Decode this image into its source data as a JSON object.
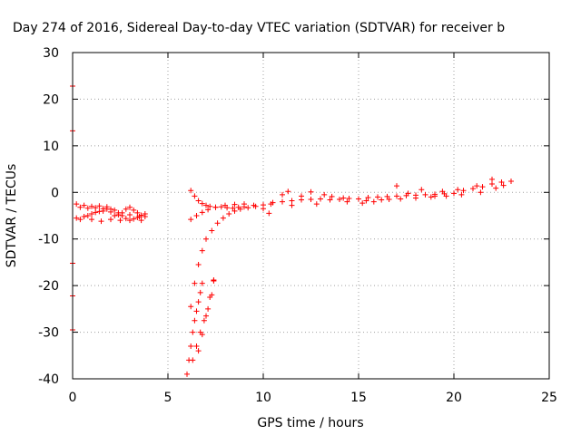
{
  "chart_data": {
    "type": "scatter",
    "title": "Day 274 of 2016, Sidereal Day-to-day VTEC variation (SDTVAR) for receiver b",
    "xlabel": "GPS time / hours",
    "ylabel": "SDTVAR / TECUs",
    "xlim": [
      0,
      25
    ],
    "ylim": [
      -40,
      30
    ],
    "xticks": [
      0,
      5,
      10,
      15,
      20,
      25
    ],
    "xtick_labels": [
      "0",
      "5",
      "10",
      "15",
      "20",
      "25"
    ],
    "yticks": [
      -40,
      -30,
      -20,
      -10,
      0,
      10,
      20,
      30
    ],
    "ytick_labels": [
      "-40",
      "-30",
      "-20",
      "-10",
      "0",
      "10",
      "20",
      "30"
    ],
    "grid": true,
    "marker": "+",
    "color": "#ff0000",
    "series": [
      {
        "points": [
          [
            0,
            22.8
          ],
          [
            0,
            13.2
          ],
          [
            0,
            -15.2
          ],
          [
            0,
            -22.2
          ],
          [
            0,
            -29.5
          ],
          [
            0.2,
            -2.5
          ],
          [
            0.4,
            -3.2
          ],
          [
            0.6,
            -2.8
          ],
          [
            0.8,
            -3.4
          ],
          [
            1.0,
            -3.0
          ],
          [
            1.2,
            -3.3
          ],
          [
            1.4,
            -2.9
          ],
          [
            1.6,
            -3.5
          ],
          [
            1.8,
            -3.1
          ],
          [
            2.0,
            -4.2
          ],
          [
            2.2,
            -5.0
          ],
          [
            2.4,
            -4.8
          ],
          [
            2.6,
            -4.4
          ],
          [
            2.8,
            -3.6
          ],
          [
            3.0,
            -3.2
          ],
          [
            3.2,
            -3.8
          ],
          [
            3.4,
            -4.4
          ],
          [
            3.6,
            -4.9
          ],
          [
            3.8,
            -4.6
          ],
          [
            0.2,
            -5.5
          ],
          [
            0.4,
            -5.8
          ],
          [
            0.6,
            -5.2
          ],
          [
            0.8,
            -5.0
          ],
          [
            1.0,
            -4.6
          ],
          [
            1.2,
            -4.3
          ],
          [
            1.4,
            -4.1
          ],
          [
            1.6,
            -4.0
          ],
          [
            1.8,
            -3.6
          ],
          [
            2.0,
            -3.6
          ],
          [
            2.2,
            -3.8
          ],
          [
            2.4,
            -4.4
          ],
          [
            2.6,
            -5.0
          ],
          [
            2.8,
            -5.6
          ],
          [
            3.0,
            -6.0
          ],
          [
            3.2,
            -5.7
          ],
          [
            3.4,
            -5.4
          ],
          [
            3.6,
            -6.0
          ],
          [
            3.8,
            -5.2
          ],
          [
            1.0,
            -5.8
          ],
          [
            1.5,
            -6.2
          ],
          [
            2.0,
            -5.8
          ],
          [
            2.5,
            -6.0
          ],
          [
            3.0,
            -4.8
          ],
          [
            3.5,
            -5.2
          ],
          [
            6.2,
            0.4
          ],
          [
            6.4,
            -0.8
          ],
          [
            6.6,
            -1.8
          ],
          [
            6.8,
            -2.4
          ],
          [
            7.0,
            -2.8
          ],
          [
            7.2,
            -3.0
          ],
          [
            7.5,
            -3.2
          ],
          [
            7.8,
            -3.1
          ],
          [
            8.1,
            -3.3
          ],
          [
            8.4,
            -3.4
          ],
          [
            8.7,
            -3.2
          ],
          [
            9.0,
            -3.1
          ],
          [
            6.2,
            -24.5
          ],
          [
            6.4,
            -19.5
          ],
          [
            6.6,
            -15.5
          ],
          [
            6.8,
            -12.5
          ],
          [
            7.0,
            -10.0
          ],
          [
            7.3,
            -8.2
          ],
          [
            7.6,
            -6.6
          ],
          [
            7.9,
            -5.5
          ],
          [
            8.2,
            -4.6
          ],
          [
            8.5,
            -4.0
          ],
          [
            8.8,
            -3.6
          ],
          [
            9.2,
            -3.3
          ],
          [
            9.6,
            -3.0
          ],
          [
            10.0,
            -2.7
          ],
          [
            10.4,
            -2.5
          ],
          [
            6.2,
            -5.8
          ],
          [
            6.5,
            -5.0
          ],
          [
            6.8,
            -4.3
          ],
          [
            7.1,
            -3.7
          ],
          [
            7.5,
            -3.2
          ],
          [
            8.0,
            -2.8
          ],
          [
            8.5,
            -2.6
          ],
          [
            9.0,
            -2.5
          ],
          [
            9.5,
            -2.8
          ],
          [
            10.0,
            -3.5
          ],
          [
            10.3,
            -4.5
          ],
          [
            6.0,
            -39.0
          ],
          [
            6.1,
            -36.0
          ],
          [
            6.2,
            -33.0
          ],
          [
            6.3,
            -30.0
          ],
          [
            6.4,
            -27.5
          ],
          [
            6.5,
            -25.5
          ],
          [
            6.6,
            -23.5
          ],
          [
            6.7,
            -21.5
          ],
          [
            6.8,
            -19.5
          ],
          [
            6.3,
            -36.0
          ],
          [
            6.5,
            -33.0
          ],
          [
            6.7,
            -30.0
          ],
          [
            6.9,
            -27.5
          ],
          [
            7.1,
            -25.0
          ],
          [
            7.3,
            -22.0
          ],
          [
            7.4,
            -19.0
          ],
          [
            6.6,
            -34.0
          ],
          [
            6.8,
            -30.5
          ],
          [
            7.0,
            -26.5
          ],
          [
            7.2,
            -22.5
          ],
          [
            7.4,
            -18.8
          ],
          [
            10.5,
            -2.2
          ],
          [
            11.0,
            -2.0
          ],
          [
            11.5,
            -1.8
          ],
          [
            12.0,
            -1.6
          ],
          [
            12.5,
            -1.5
          ],
          [
            13.0,
            -1.4
          ],
          [
            13.5,
            -1.6
          ],
          [
            14.0,
            -1.5
          ],
          [
            14.5,
            -1.3
          ],
          [
            15.0,
            -1.4
          ],
          [
            15.5,
            -1.1
          ],
          [
            16.0,
            -1.0
          ],
          [
            16.5,
            -0.9
          ],
          [
            17.0,
            -0.8
          ],
          [
            17.5,
            -0.7
          ],
          [
            18.0,
            -0.6
          ],
          [
            18.5,
            -0.5
          ],
          [
            19.0,
            -0.4
          ],
          [
            19.5,
            -0.3
          ],
          [
            20.0,
            -0.2
          ],
          [
            20.5,
            0.4
          ],
          [
            21.0,
            0.8
          ],
          [
            21.5,
            1.2
          ],
          [
            22.0,
            1.8
          ],
          [
            22.5,
            2.2
          ],
          [
            23.0,
            2.4
          ],
          [
            11.0,
            -0.5
          ],
          [
            11.3,
            0.2
          ],
          [
            12.5,
            0.1
          ],
          [
            13.2,
            -0.5
          ],
          [
            14.2,
            -1.2
          ],
          [
            15.2,
            -2.3
          ],
          [
            15.8,
            -2.0
          ],
          [
            16.6,
            -1.5
          ],
          [
            17.0,
            1.4
          ],
          [
            17.6,
            -0.2
          ],
          [
            18.3,
            0.6
          ],
          [
            19.0,
            -0.8
          ],
          [
            19.4,
            0.2
          ],
          [
            20.2,
            0.6
          ],
          [
            21.2,
            1.4
          ],
          [
            22.0,
            2.8
          ],
          [
            22.6,
            1.5
          ],
          [
            11.5,
            -2.8
          ],
          [
            12.0,
            -0.8
          ],
          [
            12.8,
            -2.5
          ],
          [
            13.6,
            -0.9
          ],
          [
            14.4,
            -2.0
          ],
          [
            15.4,
            -1.8
          ],
          [
            16.2,
            -1.6
          ],
          [
            17.2,
            -1.4
          ],
          [
            18.0,
            -1.2
          ],
          [
            18.8,
            -1.0
          ],
          [
            19.6,
            -0.8
          ],
          [
            20.4,
            -0.5
          ],
          [
            21.4,
            0.0
          ],
          [
            22.2,
            0.9
          ]
        ]
      }
    ]
  }
}
